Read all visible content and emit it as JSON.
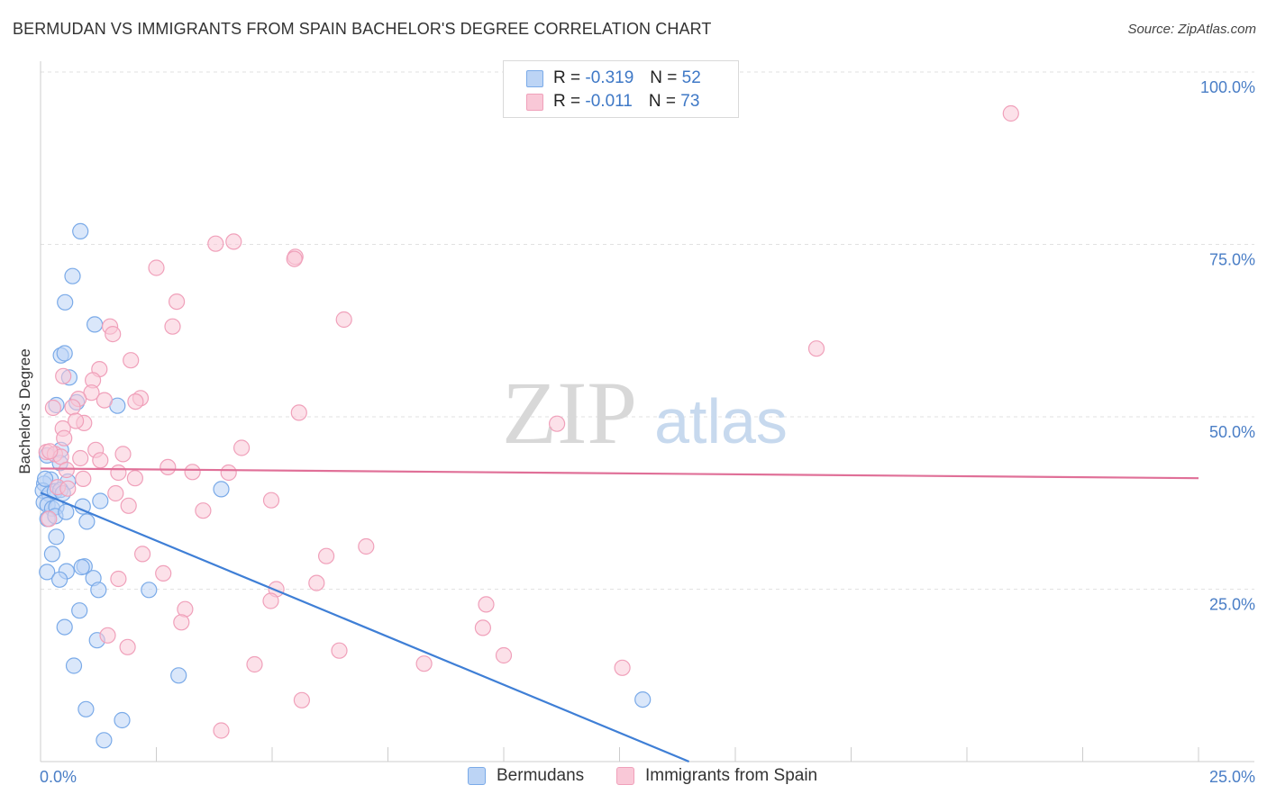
{
  "header": {
    "title": "BERMUDAN VS IMMIGRANTS FROM SPAIN BACHELOR'S DEGREE CORRELATION CHART",
    "source": "Source: ZipAtlas.com"
  },
  "watermark": {
    "zip": "ZIP",
    "atlas": "atlas"
  },
  "legend": {
    "r_label": "R =",
    "n_label": "N =",
    "series": [
      {
        "name": "Bermudans",
        "r": "-0.319",
        "n": "52",
        "color": "#7aaae8",
        "fill": "#bcd4f5",
        "line_color": "#3f7fd6"
      },
      {
        "name": "Immigrants from Spain",
        "r": "-0.011",
        "n": "73",
        "color": "#f0a0ba",
        "fill": "#f9c8d7",
        "line_color": "#e07098"
      }
    ]
  },
  "chart_data": {
    "type": "scatter",
    "title": "BERMUDAN VS IMMIGRANTS FROM SPAIN BACHELOR'S DEGREE CORRELATION CHART",
    "xlabel": "",
    "ylabel": "Bachelor's Degree",
    "xlim": [
      0,
      25
    ],
    "ylim": [
      0,
      100
    ],
    "x_tick_labels": [
      "0.0%",
      "25.0%"
    ],
    "y_tick_labels": [
      "25.0%",
      "50.0%",
      "75.0%",
      "100.0%"
    ],
    "y_ticks": [
      25,
      50,
      75,
      100
    ],
    "grid": true,
    "legend_position": "top-center",
    "series": [
      {
        "name": "Bermudans",
        "r": -0.319,
        "n": 52,
        "trend": {
          "x0": 0.0,
          "y0": 39.0,
          "x1": 14.0,
          "y1": 0.0
        },
        "points": [
          [
            0.86,
            76.9
          ],
          [
            0.69,
            70.4
          ],
          [
            0.53,
            66.6
          ],
          [
            1.17,
            63.4
          ],
          [
            0.44,
            58.9
          ],
          [
            0.52,
            59.2
          ],
          [
            0.62,
            55.7
          ],
          [
            0.34,
            51.7
          ],
          [
            1.66,
            51.6
          ],
          [
            0.78,
            52.1
          ],
          [
            0.44,
            45.2
          ],
          [
            0.14,
            44.4
          ],
          [
            0.42,
            43.3
          ],
          [
            0.59,
            40.6
          ],
          [
            0.22,
            40.9
          ],
          [
            0.08,
            40.3
          ],
          [
            0.05,
            39.3
          ],
          [
            0.19,
            38.8
          ],
          [
            0.31,
            39.2
          ],
          [
            0.43,
            39.4
          ],
          [
            0.48,
            38.9
          ],
          [
            0.07,
            37.6
          ],
          [
            0.15,
            37.2
          ],
          [
            0.25,
            36.7
          ],
          [
            0.34,
            36.9
          ],
          [
            0.15,
            35.2
          ],
          [
            0.32,
            35.6
          ],
          [
            0.55,
            36.2
          ],
          [
            1.29,
            37.8
          ],
          [
            0.91,
            37.0
          ],
          [
            3.9,
            39.5
          ],
          [
            1.0,
            34.8
          ],
          [
            0.34,
            32.6
          ],
          [
            0.25,
            30.1
          ],
          [
            0.95,
            28.3
          ],
          [
            0.89,
            28.2
          ],
          [
            0.14,
            27.5
          ],
          [
            0.56,
            27.6
          ],
          [
            1.14,
            26.6
          ],
          [
            0.41,
            26.4
          ],
          [
            1.25,
            24.9
          ],
          [
            2.34,
            24.9
          ],
          [
            0.84,
            21.9
          ],
          [
            0.52,
            19.5
          ],
          [
            1.22,
            17.6
          ],
          [
            0.72,
            13.9
          ],
          [
            2.98,
            12.5
          ],
          [
            0.98,
            7.6
          ],
          [
            1.76,
            6.0
          ],
          [
            13.0,
            9.0
          ],
          [
            1.37,
            3.1
          ],
          [
            0.1,
            41.0
          ]
        ]
      },
      {
        "name": "Immigrants from Spain",
        "r": -0.011,
        "n": 73,
        "trend": {
          "x0": 0.0,
          "y0": 42.5,
          "x1": 25.0,
          "y1": 41.1
        },
        "points": [
          [
            20.95,
            94.0
          ],
          [
            4.17,
            75.4
          ],
          [
            3.78,
            75.1
          ],
          [
            5.5,
            73.2
          ],
          [
            5.48,
            72.9
          ],
          [
            2.5,
            71.6
          ],
          [
            2.94,
            66.7
          ],
          [
            6.55,
            64.1
          ],
          [
            2.85,
            63.1
          ],
          [
            1.5,
            63.1
          ],
          [
            1.56,
            62.0
          ],
          [
            16.75,
            59.9
          ],
          [
            1.95,
            58.2
          ],
          [
            1.27,
            56.9
          ],
          [
            0.49,
            55.9
          ],
          [
            1.13,
            55.3
          ],
          [
            1.1,
            53.5
          ],
          [
            0.82,
            52.6
          ],
          [
            1.38,
            52.4
          ],
          [
            2.16,
            52.7
          ],
          [
            2.05,
            52.2
          ],
          [
            0.69,
            51.4
          ],
          [
            0.27,
            51.3
          ],
          [
            5.58,
            50.6
          ],
          [
            0.94,
            49.1
          ],
          [
            0.76,
            49.4
          ],
          [
            11.15,
            49.0
          ],
          [
            0.48,
            48.3
          ],
          [
            0.51,
            46.9
          ],
          [
            1.19,
            45.2
          ],
          [
            4.34,
            45.5
          ],
          [
            0.13,
            44.9
          ],
          [
            0.31,
            44.6
          ],
          [
            0.44,
            44.2
          ],
          [
            1.78,
            44.6
          ],
          [
            0.86,
            44.0
          ],
          [
            1.29,
            43.7
          ],
          [
            2.75,
            42.7
          ],
          [
            0.56,
            42.3
          ],
          [
            1.68,
            41.9
          ],
          [
            3.28,
            42.0
          ],
          [
            4.06,
            41.9
          ],
          [
            0.92,
            41.0
          ],
          [
            2.04,
            41.1
          ],
          [
            0.37,
            39.8
          ],
          [
            0.59,
            39.6
          ],
          [
            1.62,
            38.9
          ],
          [
            4.98,
            37.9
          ],
          [
            1.9,
            37.1
          ],
          [
            3.51,
            36.4
          ],
          [
            0.18,
            35.2
          ],
          [
            7.03,
            31.2
          ],
          [
            6.17,
            29.8
          ],
          [
            2.2,
            30.1
          ],
          [
            2.65,
            27.3
          ],
          [
            1.68,
            26.5
          ],
          [
            5.96,
            25.9
          ],
          [
            5.09,
            25.0
          ],
          [
            4.97,
            23.3
          ],
          [
            9.62,
            22.8
          ],
          [
            3.12,
            22.1
          ],
          [
            3.04,
            20.2
          ],
          [
            9.55,
            19.4
          ],
          [
            1.45,
            18.3
          ],
          [
            1.88,
            16.6
          ],
          [
            6.45,
            16.1
          ],
          [
            10.0,
            15.4
          ],
          [
            8.28,
            14.2
          ],
          [
            4.62,
            14.1
          ],
          [
            12.56,
            13.6
          ],
          [
            5.64,
            8.9
          ],
          [
            3.9,
            4.5
          ],
          [
            0.2,
            45.0
          ]
        ]
      }
    ]
  }
}
